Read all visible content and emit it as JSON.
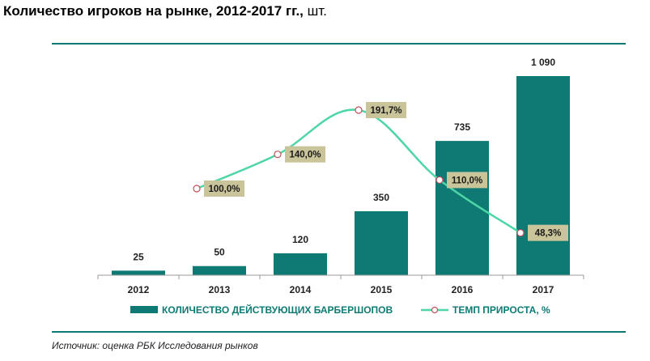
{
  "header": {
    "title": "Количество игроков на рынке, 2012-2017 гг.,",
    "unit": "шт."
  },
  "source": "Источник: оценка РБК Исследования рынков",
  "colors": {
    "bar": "#0e7a73",
    "line": "#4ed6a6",
    "label_bg": "#c9c49a",
    "rule": "#0e7a73"
  },
  "chart_data": {
    "type": "bar",
    "title": "Количество игроков на рынке, 2012-2017 гг., шт.",
    "categories": [
      "2012",
      "2013",
      "2014",
      "2015",
      "2016",
      "2017"
    ],
    "series": [
      {
        "name": "КОЛИЧЕСТВО ДЕЙСТВУЮЩИХ БАРБЕРШОПОВ",
        "type": "bar",
        "values": [
          25,
          50,
          120,
          350,
          735,
          1090
        ],
        "labels": [
          "25",
          "50",
          "120",
          "350",
          "735",
          "1 090"
        ]
      },
      {
        "name": "ТЕМП ПРИРОСТА, %",
        "type": "line",
        "values": [
          null,
          100.0,
          140.0,
          191.7,
          110.0,
          48.3
        ],
        "labels": [
          "",
          "100,0%",
          "140,0%",
          "191,7%",
          "110,0%",
          "48,3%"
        ]
      }
    ],
    "legend_position": "bottom",
    "grid": false
  }
}
